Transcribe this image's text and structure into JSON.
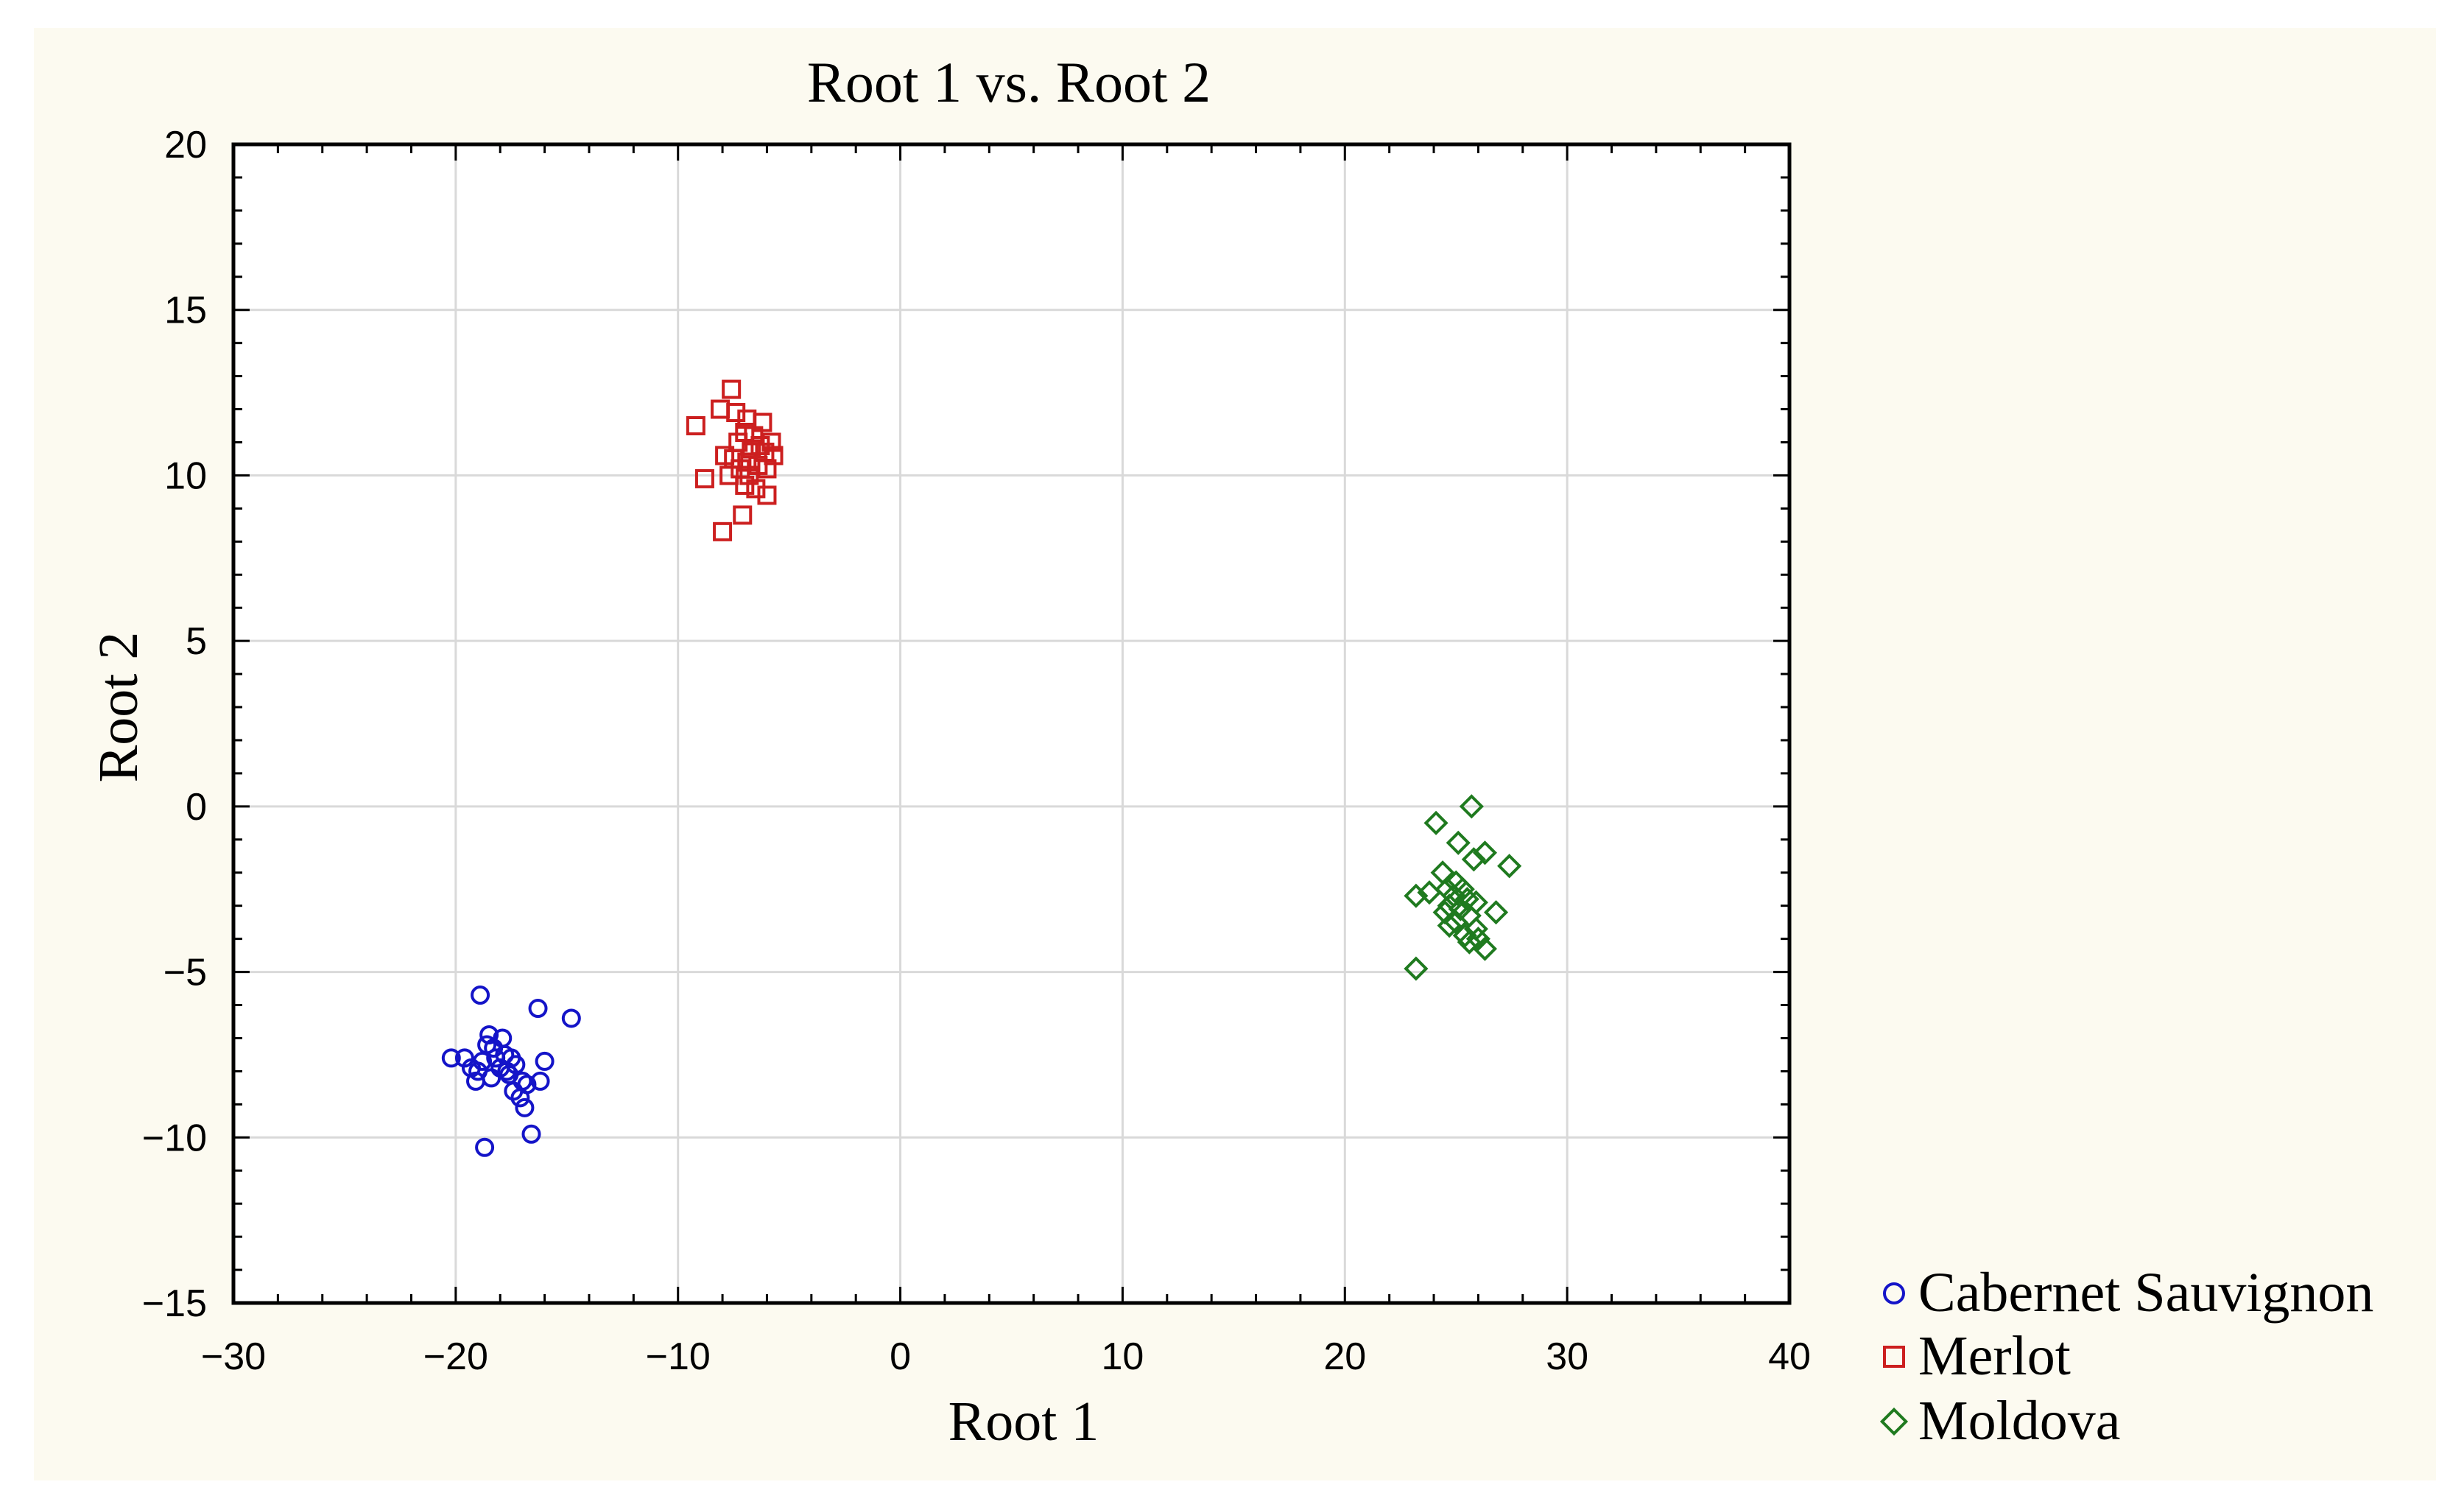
{
  "chart_data": {
    "type": "scatter",
    "title": "Root 1 vs. Root 2",
    "xlabel": "Root 1",
    "ylabel": "Root 2",
    "xlim": [
      -30,
      40
    ],
    "ylim": [
      -15,
      20
    ],
    "xticks": [
      -30,
      -20,
      -10,
      0,
      10,
      20,
      30,
      40
    ],
    "yticks": [
      -15,
      -10,
      -5,
      0,
      5,
      10,
      15,
      20
    ],
    "xtick_labels": [
      "−30",
      "−20",
      "−10",
      "0",
      "10",
      "20",
      "30",
      "40"
    ],
    "ytick_labels": [
      "−15",
      "−10",
      "−5",
      "0",
      "5",
      "10",
      "15",
      "20"
    ],
    "grid": true,
    "legend_position": "bottom-right, outside plot",
    "colors": {
      "background": "#fcfaf0",
      "plot_background": "#ffffff",
      "grid": "#d9d9d9",
      "cabernet": "#1414c8",
      "merlot": "#cc1f1f",
      "moldova": "#1f7a1f"
    },
    "series": [
      {
        "name": "Cabernet Sauvignon",
        "marker": "circle",
        "color": "#1414c8",
        "points": [
          [
            -18.9,
            -5.7
          ],
          [
            -16.3,
            -6.1
          ],
          [
            -14.8,
            -6.4
          ],
          [
            -20.2,
            -7.6
          ],
          [
            -19.6,
            -7.6
          ],
          [
            -19.3,
            -7.9
          ],
          [
            -19.1,
            -8.3
          ],
          [
            -18.8,
            -7.7
          ],
          [
            -18.6,
            -7.2
          ],
          [
            -18.5,
            -6.9
          ],
          [
            -18.3,
            -7.3
          ],
          [
            -18.2,
            -7.6
          ],
          [
            -18.0,
            -7.9
          ],
          [
            -17.9,
            -7.0
          ],
          [
            -17.8,
            -7.5
          ],
          [
            -17.7,
            -8.0
          ],
          [
            -17.5,
            -7.6
          ],
          [
            -17.4,
            -8.6
          ],
          [
            -17.3,
            -7.8
          ],
          [
            -17.1,
            -8.8
          ],
          [
            -17.0,
            -8.3
          ],
          [
            -16.9,
            -9.1
          ],
          [
            -16.8,
            -8.4
          ],
          [
            -16.6,
            -9.9
          ],
          [
            -16.2,
            -8.3
          ],
          [
            -16.0,
            -7.7
          ],
          [
            -18.7,
            -10.3
          ],
          [
            -19.0,
            -8.0
          ],
          [
            -18.4,
            -8.2
          ],
          [
            -17.6,
            -8.1
          ]
        ]
      },
      {
        "name": "Merlot",
        "marker": "square",
        "color": "#cc1f1f",
        "points": [
          [
            -7.6,
            12.6
          ],
          [
            -9.2,
            11.5
          ],
          [
            -8.1,
            12.0
          ],
          [
            -7.4,
            11.9
          ],
          [
            -6.9,
            11.7
          ],
          [
            -6.2,
            11.6
          ],
          [
            -7.0,
            11.3
          ],
          [
            -6.6,
            11.2
          ],
          [
            -7.3,
            11.0
          ],
          [
            -5.8,
            11.0
          ],
          [
            -6.7,
            10.8
          ],
          [
            -6.1,
            10.7
          ],
          [
            -5.7,
            10.6
          ],
          [
            -7.9,
            10.6
          ],
          [
            -7.5,
            10.5
          ],
          [
            -6.9,
            10.4
          ],
          [
            -6.4,
            10.3
          ],
          [
            -7.2,
            10.2
          ],
          [
            -6.0,
            10.2
          ],
          [
            -6.8,
            10.0
          ],
          [
            -8.8,
            9.9
          ],
          [
            -7.0,
            9.7
          ],
          [
            -6.5,
            9.6
          ],
          [
            -6.0,
            9.4
          ],
          [
            -7.1,
            8.8
          ],
          [
            -8.0,
            8.3
          ],
          [
            -7.7,
            10.0
          ],
          [
            -6.3,
            10.9
          ]
        ]
      },
      {
        "name": "Moldova",
        "marker": "diamond",
        "color": "#1f7a1f",
        "points": [
          [
            25.7,
            0.0
          ],
          [
            24.1,
            -0.5
          ],
          [
            25.1,
            -1.1
          ],
          [
            26.3,
            -1.4
          ],
          [
            25.8,
            -1.6
          ],
          [
            27.4,
            -1.8
          ],
          [
            24.4,
            -2.0
          ],
          [
            25.0,
            -2.3
          ],
          [
            24.6,
            -2.5
          ],
          [
            25.3,
            -2.5
          ],
          [
            23.8,
            -2.6
          ],
          [
            24.9,
            -2.7
          ],
          [
            23.2,
            -2.7
          ],
          [
            25.5,
            -2.8
          ],
          [
            25.9,
            -2.9
          ],
          [
            24.7,
            -3.0
          ],
          [
            25.2,
            -3.1
          ],
          [
            26.8,
            -3.2
          ],
          [
            24.5,
            -3.2
          ],
          [
            25.6,
            -3.3
          ],
          [
            25.0,
            -3.5
          ],
          [
            24.7,
            -3.6
          ],
          [
            25.4,
            -3.9
          ],
          [
            26.0,
            -4.0
          ],
          [
            25.6,
            -4.1
          ],
          [
            26.3,
            -4.3
          ],
          [
            23.2,
            -4.9
          ],
          [
            25.9,
            -3.7
          ]
        ]
      }
    ]
  }
}
